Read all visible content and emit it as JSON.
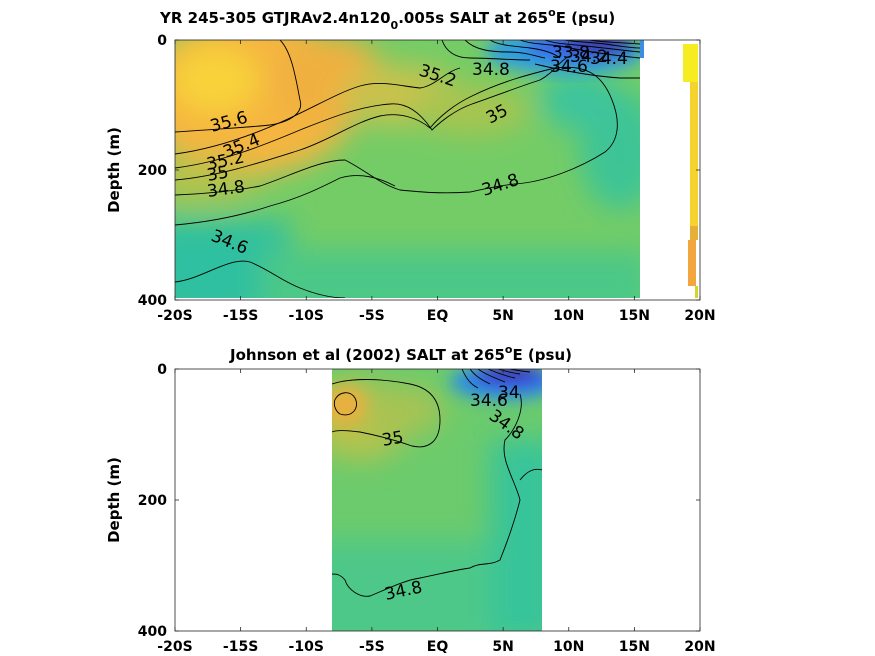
{
  "chart_data": [
    {
      "type": "heatmap",
      "title": "YR 245-305 GTJRAv2.4n120",
      "title_subscript": "0",
      "title_rest": ".005s SALT at 265",
      "title_superscript": "o",
      "title_end": "E (psu)",
      "ylabel": "Depth (m)",
      "xlim": [
        -20,
        20
      ],
      "ylim": [
        400,
        0
      ],
      "x_tick_values": [
        -20,
        -15,
        -10,
        -5,
        0,
        5,
        10,
        15,
        20
      ],
      "x_tick_labels": [
        "-20S",
        "-15S",
        "-10S",
        "-5S",
        "EQ",
        "5N",
        "10N",
        "15N",
        "20N"
      ],
      "y_tick_values": [
        0,
        200,
        400
      ],
      "y_tick_labels": [
        "0",
        "200",
        "400"
      ],
      "data_extent_x": [
        -20,
        15.5
      ],
      "contour_labels": [
        {
          "text": "35.6",
          "x": -16,
          "y": 130
        },
        {
          "text": "35.4",
          "x": -14.2,
          "y": 155
        },
        {
          "text": "35.2",
          "x": -16.3,
          "y": 183
        },
        {
          "text": "35",
          "x": -16.3,
          "y": 200
        },
        {
          "text": "34.8",
          "x": -16.3,
          "y": 222
        },
        {
          "text": "34.6",
          "x": -16.3,
          "y": 310
        },
        {
          "text": "35.2",
          "x": 0.3,
          "y": 55
        },
        {
          "text": "34.8",
          "x": 3,
          "y": 48
        },
        {
          "text": "35",
          "x": 5,
          "y": 120
        },
        {
          "text": "34.8",
          "x": 4.4,
          "y": 225
        },
        {
          "text": "33.8",
          "x": 9.2,
          "y": 22
        },
        {
          "text": "34.2",
          "x": 9.6,
          "y": 30
        },
        {
          "text": "34.4",
          "x": 9.4,
          "y": 42
        },
        {
          "text": "34.6",
          "x": 9.2,
          "y": 48
        }
      ]
    },
    {
      "type": "heatmap",
      "title": "Johnson et al (2002) SALT at 265",
      "title_superscript": "o",
      "title_end": "E (psu)",
      "ylabel": "Depth (m)",
      "xlim": [
        -20,
        20
      ],
      "ylim": [
        400,
        0
      ],
      "x_tick_values": [
        -20,
        -15,
        -10,
        -5,
        0,
        5,
        10,
        15,
        20
      ],
      "x_tick_labels": [
        "-20S",
        "-15S",
        "-10S",
        "-5S",
        "EQ",
        "5N",
        "10N",
        "15N",
        "20N"
      ],
      "y_tick_values": [
        0,
        200,
        400
      ],
      "y_tick_labels": [
        "0",
        "200",
        "400"
      ],
      "data_extent_x": [
        -8,
        8
      ],
      "contour_labels": [
        {
          "text": "35",
          "x": -1.5,
          "y": 115
        },
        {
          "text": "34.6",
          "x": 2.2,
          "y": 50
        },
        {
          "text": "34",
          "x": 4,
          "y": 35
        },
        {
          "text": "34.8",
          "x": 2.6,
          "y": 80
        },
        {
          "text": "34.8",
          "x": -1,
          "y": 340
        }
      ]
    }
  ]
}
